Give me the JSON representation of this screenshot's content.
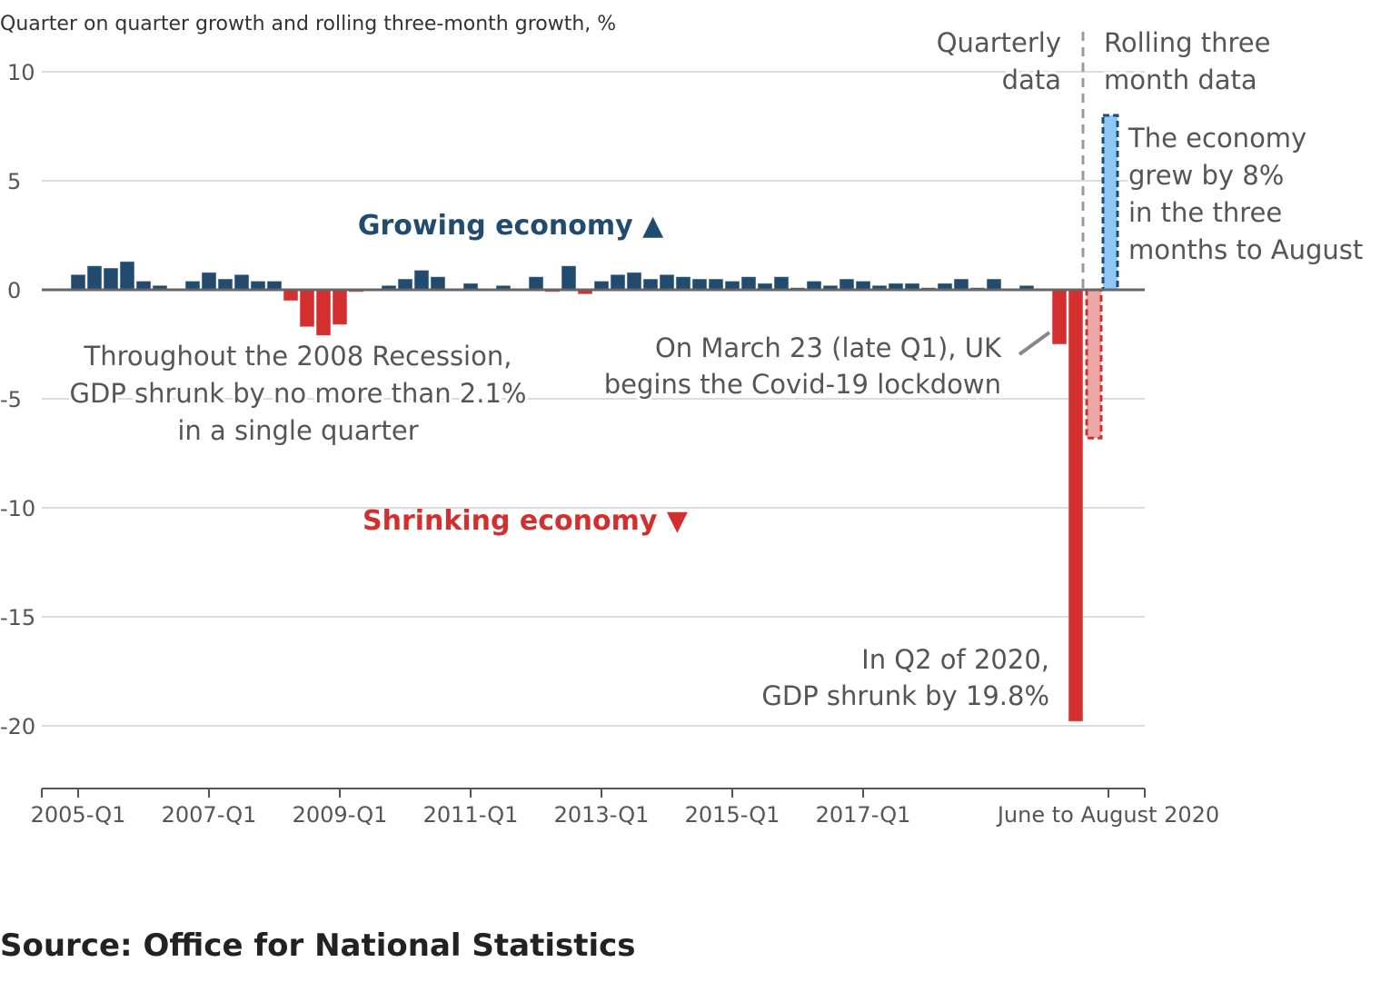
{
  "chart_data": {
    "type": "bar",
    "title": "Quarter on quarter growth and rolling three-month growth, %",
    "ylim": [
      -23,
      10
    ],
    "yticks": [
      10,
      5,
      0,
      -5,
      -10,
      -15,
      -20
    ],
    "ytick_labels": [
      "10",
      "5",
      "0",
      "-5",
      "-10",
      "-15",
      "-20"
    ],
    "xtick_labels": [
      "2005-Q1",
      "2007-Q1",
      "2009-Q1",
      "2011-Q1",
      "2013-Q1",
      "2015-Q1",
      "2017-Q1",
      "June to August 2020"
    ],
    "grid": true,
    "series": [
      {
        "name": "Quarterly data",
        "start": "2005-Q1",
        "values": [
          0.7,
          1.1,
          1.0,
          1.3,
          0.4,
          0.2,
          0.0,
          0.4,
          0.8,
          0.5,
          0.7,
          0.4,
          0.4,
          -0.5,
          -1.7,
          -2.1,
          -1.6,
          -0.1,
          0.0,
          0.2,
          0.5,
          0.9,
          0.6,
          0.0,
          0.3,
          0.0,
          0.2,
          0.0,
          0.6,
          -0.1,
          1.1,
          -0.2,
          0.4,
          0.7,
          0.8,
          0.5,
          0.7,
          0.6,
          0.5,
          0.5,
          0.4,
          0.6,
          0.3,
          0.6,
          0.1,
          0.4,
          0.2,
          0.5,
          0.4,
          0.2,
          0.3,
          0.3,
          0.1,
          0.3,
          0.5,
          0.1,
          0.5,
          0.0,
          0.2,
          0.0,
          -2.5,
          -19.8
        ]
      },
      {
        "name": "Rolling three month data",
        "values": [
          -6.8,
          8.0
        ]
      }
    ],
    "section_labels": {
      "quarterly": [
        "Quarterly",
        "data"
      ],
      "rolling": [
        "Rolling three",
        "month data"
      ]
    },
    "annotations": {
      "growing": "Growing economy ▲",
      "shrinking": "Shrinking economy ▼",
      "recession": [
        "Throughout the 2008 Recession,",
        "GDP shrunk by no more than 2.1%",
        "in a single quarter"
      ],
      "lockdown": [
        "On March 23 (late Q1), UK",
        "begins the Covid-19 lockdown"
      ],
      "q2": [
        "In Q2 of 2020,",
        "GDP shrunk by 19.8%"
      ],
      "grew": [
        "The economy",
        "grew by 8%",
        "in the three",
        "months to August"
      ]
    },
    "colors": {
      "positive": "#224b70",
      "negative": "#d32f2f",
      "rolling_positive": "#8ec8f8",
      "rolling_negative": "#eba6a6",
      "text": "#555555"
    }
  },
  "source": "Source: Office for National Statistics"
}
